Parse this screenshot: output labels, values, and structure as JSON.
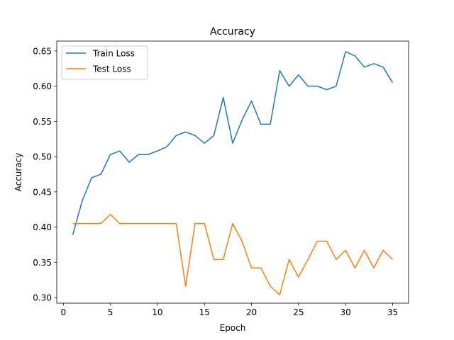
{
  "chart_data": {
    "type": "line",
    "title": "Accuracy",
    "xlabel": "Epoch",
    "ylabel": "Accuracy",
    "xlim": [
      -0.7,
      36.7
    ],
    "ylim": [
      0.292,
      0.664
    ],
    "xticks": [
      0,
      5,
      10,
      15,
      20,
      25,
      30,
      35
    ],
    "yticks": [
      0.3,
      0.35,
      0.4,
      0.45,
      0.5,
      0.55,
      0.6,
      0.65
    ],
    "ytick_labels": [
      "0.30",
      "0.35",
      "0.40",
      "0.45",
      "0.50",
      "0.55",
      "0.60",
      "0.65"
    ],
    "grid": false,
    "legend_position": "top-left",
    "x": [
      1,
      2,
      3,
      4,
      5,
      6,
      7,
      8,
      9,
      10,
      11,
      12,
      13,
      14,
      15,
      16,
      17,
      18,
      19,
      20,
      21,
      22,
      23,
      24,
      25,
      26,
      27,
      28,
      29,
      30,
      31,
      32,
      33,
      34,
      35
    ],
    "series": [
      {
        "name": "Train Loss",
        "color": "#1f77b4",
        "values": [
          0.389,
          0.437,
          0.47,
          0.475,
          0.503,
          0.508,
          0.492,
          0.503,
          0.503,
          0.508,
          0.514,
          0.53,
          0.535,
          0.53,
          0.519,
          0.53,
          0.584,
          0.519,
          0.552,
          0.579,
          0.546,
          0.546,
          0.622,
          0.6,
          0.616,
          0.6,
          0.6,
          0.595,
          0.6,
          0.649,
          0.643,
          0.627,
          0.632,
          0.627,
          0.605
        ]
      },
      {
        "name": "Test Loss",
        "color": "#ff7f0e",
        "values": [
          0.405,
          0.405,
          0.405,
          0.405,
          0.418,
          0.405,
          0.405,
          0.405,
          0.405,
          0.405,
          0.405,
          0.405,
          0.316,
          0.405,
          0.405,
          0.354,
          0.354,
          0.405,
          0.38,
          0.342,
          0.342,
          0.316,
          0.304,
          0.354,
          0.329,
          0.354,
          0.38,
          0.38,
          0.354,
          0.367,
          0.342,
          0.367,
          0.342,
          0.367,
          0.354
        ]
      }
    ]
  }
}
